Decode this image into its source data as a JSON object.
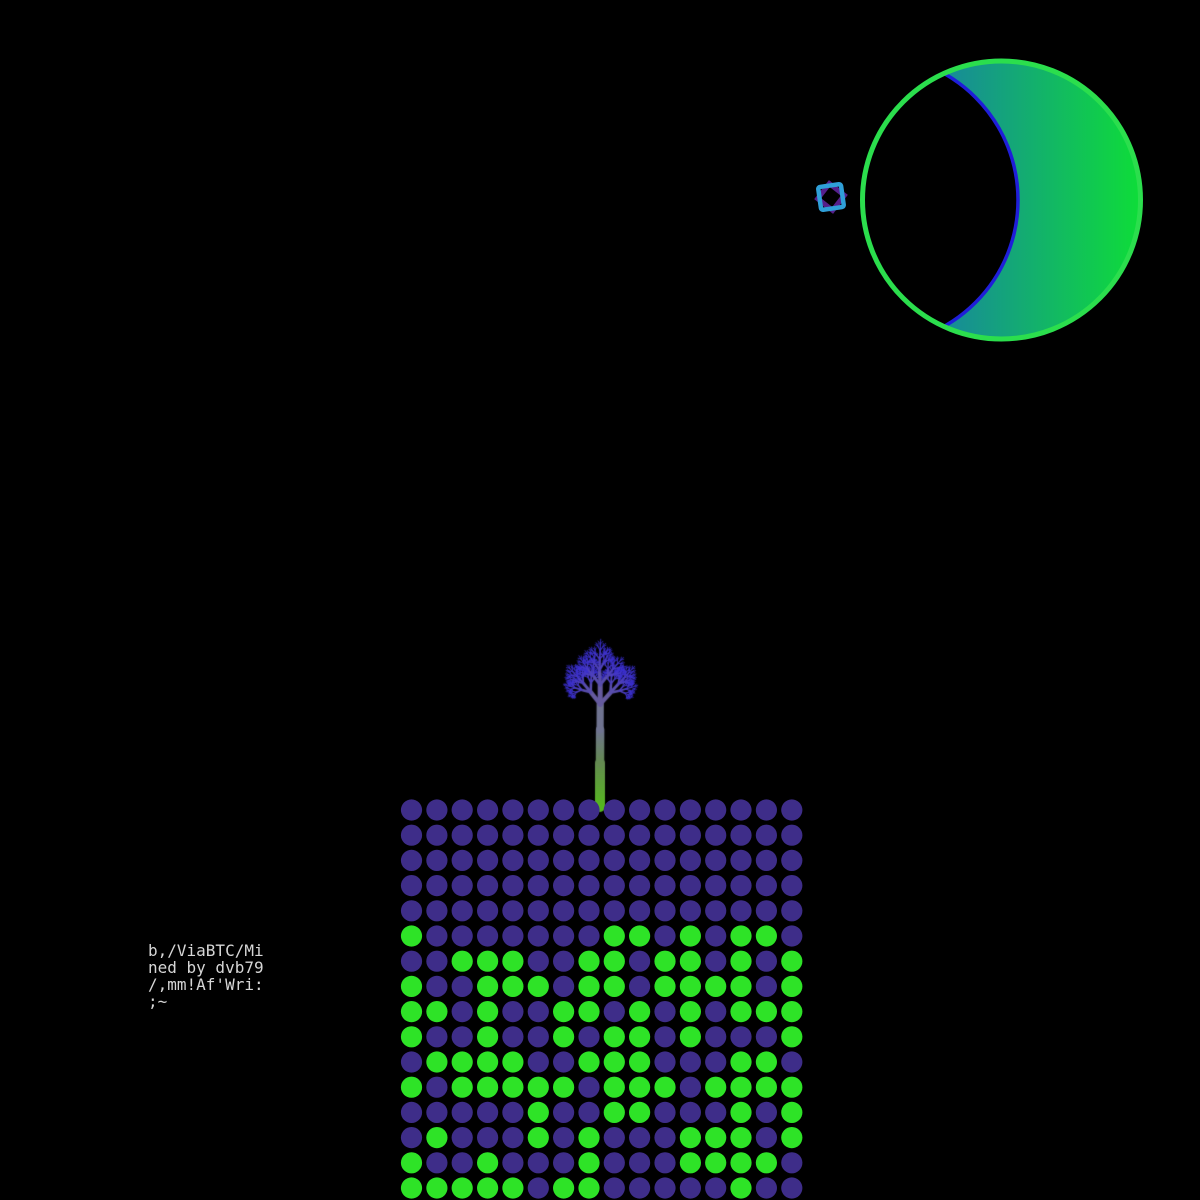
{
  "scene": {
    "background": "#000000"
  },
  "moon": {
    "outline_color": "#2BDE4D",
    "gradient_start": "#1B67C2",
    "gradient_end": "#0EDD38",
    "shadow_fill": "#000000",
    "shadow_edge_color": "#1F1ED9"
  },
  "sparkle_icon": {
    "outer_color": "#2F9FD8",
    "inner_color": "#551F8B"
  },
  "tree": {
    "trunk_bottom_color": "#55B81E",
    "depth_colors": [
      "#55B81E",
      "#648B50",
      "#6F7390",
      "#655A9E",
      "#584DAC",
      "#4E41BB",
      "#4639C4",
      "#4034CB",
      "#3B30D2"
    ]
  },
  "dot_grid": {
    "rows": 16,
    "columns": 16,
    "purple": "#3E2D89",
    "green": "#2EE327",
    "legend": "P = purple dot, G = green dot",
    "pattern": [
      "PPPPPPPPPPPPPPPP",
      "PPPPPPPPPPPPPPPP",
      "PPPPPPPPPPPPPPPP",
      "PPPPPPPPPPPPPPPP",
      "PPPPPPPPPPPPPPPP",
      "GPPPPPPPGGPGPGGP",
      "PPGGGPPGGPGGPGPG",
      "GPPGGGPGGPGGGGPG",
      "GGPGPPGGPGPGPGGG",
      "GPPGPPGPGGPGPPPG",
      "PGGGGPPGGGPPPGGP",
      "GPGGGGGPGGGPGGGG",
      "PPPPPGPPGGPPPGPG",
      "PGPPPGPGPPPGGGPG",
      "GPPGPPPGPPPGGGGP",
      "GGGGGPGGPPPPPGPP"
    ]
  },
  "annotation": {
    "color": "#D6D6D6",
    "lines": [
      "b,/ViaBTC/Mi",
      "ned by dvb79",
      "/,mm!Af'Wri:",
      ";~"
    ]
  }
}
